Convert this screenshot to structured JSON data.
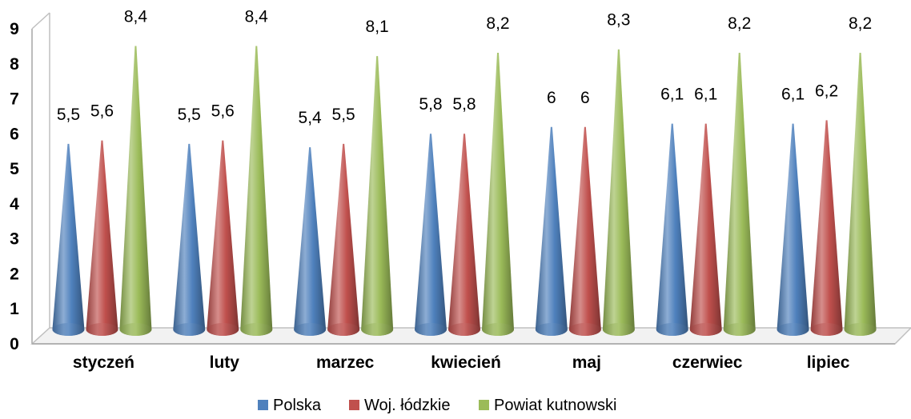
{
  "chart_data": {
    "type": "bar",
    "bar_shape": "cone-3d",
    "categories": [
      "styczeń",
      "luty",
      "marzec",
      "kwiecień",
      "maj",
      "czerwiec",
      "lipiec"
    ],
    "series": [
      {
        "name": "Polska",
        "color": "#4F81BD",
        "values": [
          5.5,
          5.5,
          5.4,
          5.8,
          6,
          6.1,
          6.1
        ],
        "labels": [
          "5,5",
          "5,5",
          "5,4",
          "5,8",
          "6",
          "6,1",
          "6,1"
        ]
      },
      {
        "name": "Woj. łódzkie",
        "color": "#C0504D",
        "values": [
          5.6,
          5.6,
          5.5,
          5.8,
          6,
          6.1,
          6.2
        ],
        "labels": [
          "5,6",
          "5,6",
          "5,5",
          "5,8",
          "6",
          "6,1",
          "6,2"
        ]
      },
      {
        "name": "Powiat kutnowski",
        "color": "#9BBB59",
        "values": [
          8.4,
          8.4,
          8.1,
          8.2,
          8.3,
          8.2,
          8.2
        ],
        "labels": [
          "8,4",
          "8,4",
          "8,1",
          "8,2",
          "8,3",
          "8,2",
          "8,2"
        ]
      }
    ],
    "yticks": [
      "0",
      "1",
      "2",
      "3",
      "4",
      "5",
      "6",
      "7",
      "8",
      "9"
    ],
    "ylim": [
      0,
      9
    ],
    "title": "",
    "xlabel": "",
    "ylabel": "",
    "grid": false,
    "legend_position": "bottom"
  }
}
